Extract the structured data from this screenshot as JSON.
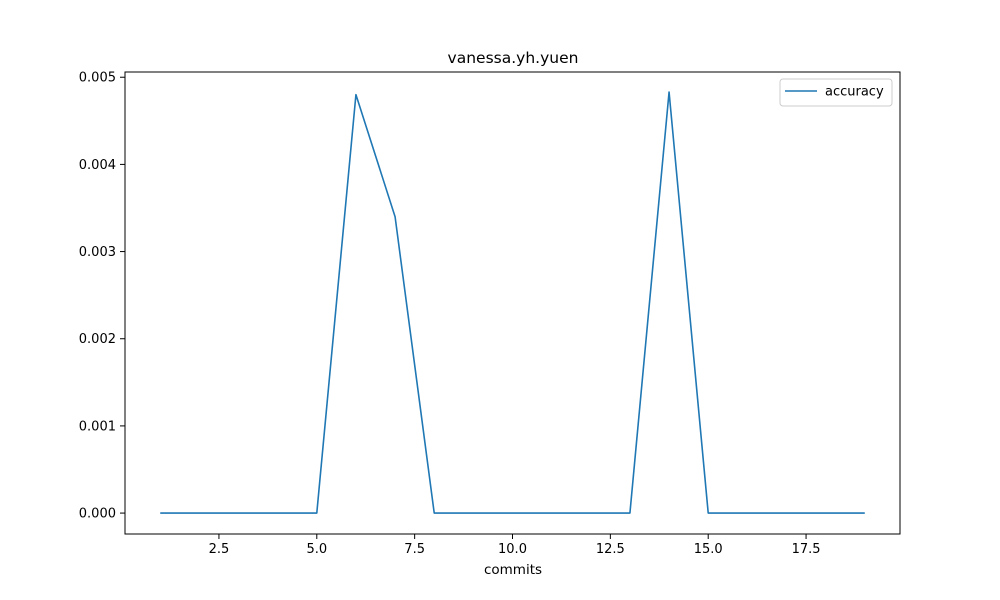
{
  "chart_data": {
    "type": "line",
    "title": "vanessa.yh.yuen",
    "xlabel": "commits",
    "ylabel": "",
    "xlim": [
      0.1,
      19.9
    ],
    "ylim": [
      -0.00024,
      0.00506
    ],
    "x_ticks": [
      2.5,
      5.0,
      7.5,
      10.0,
      12.5,
      15.0,
      17.5
    ],
    "x_tick_labels": [
      "2.5",
      "5.0",
      "7.5",
      "10.0",
      "12.5",
      "15.0",
      "17.5"
    ],
    "y_ticks": [
      0.0,
      0.001,
      0.002,
      0.003,
      0.004,
      0.005
    ],
    "y_tick_labels": [
      "0.000",
      "0.001",
      "0.002",
      "0.003",
      "0.004",
      "0.005"
    ],
    "grid": false,
    "legend_position": "top-right",
    "series": [
      {
        "name": "accuracy",
        "color": "#1f77b4",
        "x": [
          1,
          2,
          3,
          4,
          5,
          6,
          7,
          8,
          9,
          10,
          11,
          12,
          13,
          14,
          15,
          16,
          17,
          18,
          19
        ],
        "y": [
          0,
          0,
          0,
          0,
          0,
          0.0048,
          0.0034,
          0,
          0,
          0,
          0,
          0,
          0,
          0.00483,
          0,
          0,
          0,
          0,
          0
        ]
      }
    ]
  }
}
